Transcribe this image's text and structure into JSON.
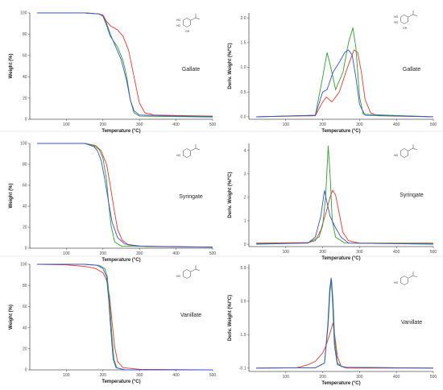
{
  "colors": {
    "red": "#e8382f",
    "green": "#2e9e2e",
    "blue": "#3b4fd6"
  },
  "panels": [
    {
      "compound": "Gallate",
      "mol_labels": [
        "HO",
        "HO",
        "OH"
      ],
      "xlabel": "Temperature (°C)",
      "ylabel": "Weight (%)",
      "xticks": [
        "100",
        "200",
        "300",
        "400",
        "500"
      ],
      "yticks": [
        "0",
        "20",
        "40",
        "60",
        "80",
        "100"
      ]
    },
    {
      "compound": "Gallate",
      "mol_labels": [
        "HO",
        "HO",
        "OH"
      ],
      "xlabel": "Temperature (°C)",
      "ylabel": "Deriv. Weight (%/°C)",
      "xticks": [
        "100",
        "200",
        "300",
        "400",
        "500"
      ],
      "yticks": [
        "0.0",
        "0.5",
        "1.0",
        "1.5",
        "2.0"
      ]
    },
    {
      "compound": "Syringate",
      "mol_labels": [
        "HO"
      ],
      "xlabel": "Temperature (°C)",
      "ylabel": "Weight (%)",
      "xticks": [
        "100",
        "200",
        "300",
        "400",
        "500"
      ],
      "yticks": [
        "0",
        "20",
        "40",
        "60",
        "80",
        "100"
      ]
    },
    {
      "compound": "Syringate",
      "mol_labels": [
        "HO"
      ],
      "xlabel": "Temperature (°C)",
      "ylabel": "Deriv. Weight (%/°C)",
      "xticks": [
        "100",
        "200",
        "300",
        "400",
        "500"
      ],
      "yticks": [
        "0",
        "1",
        "2",
        "3",
        "4"
      ]
    },
    {
      "compound": "Vanillate",
      "mol_labels": [
        "HO"
      ],
      "xlabel": "Temperature (°C)",
      "ylabel": "Weight (%)",
      "xticks": [
        "100",
        "200",
        "300",
        "400",
        "500"
      ],
      "yticks": [
        "0",
        "20",
        "40",
        "60",
        "80",
        "100"
      ]
    },
    {
      "compound": "Vanillate",
      "mol_labels": [
        "HO"
      ],
      "xlabel": "Temperature (°C)",
      "ylabel": "Deriv. Weight (%/°C)",
      "xticks": [
        "100",
        "200",
        "300",
        "400",
        "500"
      ],
      "yticks": [
        "-0.1",
        "1.9",
        "3.9",
        "5.9"
      ]
    }
  ],
  "chart_data": [
    {
      "type": "line",
      "xlim": [
        0,
        500
      ],
      "ylim": [
        0,
        100
      ],
      "series": [
        {
          "color": "red",
          "points": [
            [
              20,
              100
            ],
            [
              150,
              100
            ],
            [
              190,
              99
            ],
            [
              200,
              98
            ],
            [
              210,
              92
            ],
            [
              220,
              88
            ],
            [
              240,
              84
            ],
            [
              255,
              78
            ],
            [
              270,
              65
            ],
            [
              285,
              40
            ],
            [
              300,
              15
            ],
            [
              315,
              6
            ],
            [
              340,
              4
            ],
            [
              400,
              3.5
            ],
            [
              500,
              3
            ]
          ]
        },
        {
          "color": "green",
          "points": [
            [
              20,
              100
            ],
            [
              150,
              100
            ],
            [
              190,
              99
            ],
            [
              200,
              97
            ],
            [
              210,
              88
            ],
            [
              220,
              78
            ],
            [
              240,
              68
            ],
            [
              255,
              55
            ],
            [
              265,
              40
            ],
            [
              275,
              18
            ],
            [
              285,
              6
            ],
            [
              300,
              3
            ],
            [
              400,
              2.5
            ],
            [
              500,
              2
            ]
          ]
        },
        {
          "color": "blue",
          "points": [
            [
              20,
              100
            ],
            [
              150,
              100
            ],
            [
              190,
              99
            ],
            [
              200,
              97
            ],
            [
              210,
              90
            ],
            [
              220,
              80
            ],
            [
              235,
              68
            ],
            [
              250,
              56
            ],
            [
              265,
              36
            ],
            [
              275,
              18
            ],
            [
              285,
              8
            ],
            [
              300,
              4
            ],
            [
              400,
              3
            ],
            [
              500,
              2.5
            ]
          ]
        }
      ]
    },
    {
      "type": "line",
      "xlim": [
        0,
        500
      ],
      "ylim": [
        -0.05,
        2.1
      ],
      "series": [
        {
          "color": "red",
          "points": [
            [
              20,
              0
            ],
            [
              180,
              0.02
            ],
            [
              200,
              0.3
            ],
            [
              210,
              0.4
            ],
            [
              225,
              0.3
            ],
            [
              245,
              0.5
            ],
            [
              265,
              0.95
            ],
            [
              285,
              1.35
            ],
            [
              295,
              1.3
            ],
            [
              305,
              0.9
            ],
            [
              315,
              0.35
            ],
            [
              330,
              0.08
            ],
            [
              350,
              0.02
            ],
            [
              500,
              0
            ]
          ]
        },
        {
          "color": "green",
          "points": [
            [
              20,
              0
            ],
            [
              180,
              0.03
            ],
            [
              200,
              0.8
            ],
            [
              212,
              1.3
            ],
            [
              222,
              1.0
            ],
            [
              235,
              0.55
            ],
            [
              255,
              0.9
            ],
            [
              270,
              1.5
            ],
            [
              282,
              1.8
            ],
            [
              290,
              1.4
            ],
            [
              300,
              0.4
            ],
            [
              310,
              0.05
            ],
            [
              500,
              0
            ]
          ]
        },
        {
          "color": "blue",
          "points": [
            [
              20,
              0
            ],
            [
              180,
              0.03
            ],
            [
              200,
              0.5
            ],
            [
              212,
              0.55
            ],
            [
              228,
              0.9
            ],
            [
              245,
              1.1
            ],
            [
              260,
              1.3
            ],
            [
              270,
              1.35
            ],
            [
              280,
              1.25
            ],
            [
              290,
              0.8
            ],
            [
              300,
              0.25
            ],
            [
              315,
              0.03
            ],
            [
              500,
              0
            ]
          ]
        }
      ]
    },
    {
      "type": "line",
      "xlim": [
        0,
        500
      ],
      "ylim": [
        0,
        100
      ],
      "series": [
        {
          "color": "red",
          "points": [
            [
              20,
              100
            ],
            [
              150,
              100
            ],
            [
              180,
              98
            ],
            [
              195,
              93
            ],
            [
              210,
              80
            ],
            [
              220,
              60
            ],
            [
              230,
              38
            ],
            [
              240,
              18
            ],
            [
              252,
              8
            ],
            [
              270,
              3
            ],
            [
              320,
              1.5
            ],
            [
              500,
              1
            ]
          ]
        },
        {
          "color": "green",
          "points": [
            [
              20,
              100
            ],
            [
              150,
              100
            ],
            [
              175,
              98
            ],
            [
              190,
              94
            ],
            [
              200,
              86
            ],
            [
              210,
              65
            ],
            [
              215,
              45
            ],
            [
              222,
              22
            ],
            [
              232,
              6
            ],
            [
              250,
              2
            ],
            [
              500,
              1
            ]
          ]
        },
        {
          "color": "blue",
          "points": [
            [
              20,
              100
            ],
            [
              150,
              100
            ],
            [
              175,
              97
            ],
            [
              185,
              93
            ],
            [
              195,
              84
            ],
            [
              205,
              66
            ],
            [
              215,
              45
            ],
            [
              225,
              25
            ],
            [
              240,
              10
            ],
            [
              260,
              4
            ],
            [
              300,
              2
            ],
            [
              500,
              1
            ]
          ]
        }
      ]
    },
    {
      "type": "line",
      "xlim": [
        0,
        500
      ],
      "ylim": [
        -0.1,
        4.3
      ],
      "series": [
        {
          "color": "red",
          "points": [
            [
              20,
              0.05
            ],
            [
              160,
              0.07
            ],
            [
              180,
              0.15
            ],
            [
              195,
              0.6
            ],
            [
              210,
              1.4
            ],
            [
              220,
              2.0
            ],
            [
              227,
              2.3
            ],
            [
              235,
              2.1
            ],
            [
              245,
              1.3
            ],
            [
              255,
              0.5
            ],
            [
              270,
              0.15
            ],
            [
              300,
              0.05
            ],
            [
              500,
              0.05
            ]
          ]
        },
        {
          "color": "green",
          "points": [
            [
              20,
              0.02
            ],
            [
              160,
              0.05
            ],
            [
              190,
              0.3
            ],
            [
              200,
              0.8
            ],
            [
              208,
              2.0
            ],
            [
              215,
              4.2
            ],
            [
              220,
              3.0
            ],
            [
              226,
              1.0
            ],
            [
              235,
              0.3
            ],
            [
              260,
              0.05
            ],
            [
              500,
              0.03
            ]
          ]
        },
        {
          "color": "blue",
          "points": [
            [
              20,
              0
            ],
            [
              160,
              0.05
            ],
            [
              180,
              0.3
            ],
            [
              195,
              1.2
            ],
            [
              205,
              2.3
            ],
            [
              210,
              1.9
            ],
            [
              220,
              1.2
            ],
            [
              235,
              0.7
            ],
            [
              250,
              0.3
            ],
            [
              270,
              0.05
            ],
            [
              500,
              0
            ]
          ]
        }
      ]
    },
    {
      "type": "line",
      "xlim": [
        0,
        500
      ],
      "ylim": [
        0,
        100
      ],
      "series": [
        {
          "color": "red",
          "points": [
            [
              20,
              100
            ],
            [
              100,
              99.5
            ],
            [
              150,
              98
            ],
            [
              180,
              96
            ],
            [
              200,
              92
            ],
            [
              210,
              85
            ],
            [
              218,
              70
            ],
            [
              225,
              45
            ],
            [
              232,
              22
            ],
            [
              240,
              8
            ],
            [
              255,
              2
            ],
            [
              300,
              0.5
            ],
            [
              500,
              0
            ]
          ]
        },
        {
          "color": "green",
          "points": [
            [
              20,
              100
            ],
            [
              150,
              100
            ],
            [
              190,
              99
            ],
            [
              205,
              96
            ],
            [
              212,
              88
            ],
            [
              218,
              65
            ],
            [
              224,
              35
            ],
            [
              230,
              10
            ],
            [
              238,
              2
            ],
            [
              260,
              0
            ],
            [
              500,
              0
            ]
          ]
        },
        {
          "color": "blue",
          "points": [
            [
              20,
              100
            ],
            [
              150,
              100
            ],
            [
              185,
              99
            ],
            [
              200,
              96
            ],
            [
              210,
              88
            ],
            [
              216,
              65
            ],
            [
              222,
              35
            ],
            [
              228,
              10
            ],
            [
              236,
              2
            ],
            [
              260,
              0
            ],
            [
              500,
              0
            ]
          ]
        }
      ]
    },
    {
      "type": "line",
      "xlim": [
        0,
        500
      ],
      "ylim": [
        -0.3,
        6.1
      ],
      "series": [
        {
          "color": "red",
          "points": [
            [
              20,
              -0.1
            ],
            [
              130,
              -0.08
            ],
            [
              160,
              0.1
            ],
            [
              180,
              0.3
            ],
            [
              200,
              0.8
            ],
            [
              210,
              1.3
            ],
            [
              220,
              2.0
            ],
            [
              228,
              2.6
            ],
            [
              233,
              1.8
            ],
            [
              240,
              0.6
            ],
            [
              250,
              0
            ],
            [
              265,
              -0.1
            ],
            [
              500,
              -0.1
            ]
          ]
        },
        {
          "color": "green",
          "points": [
            [
              20,
              -0.1
            ],
            [
              180,
              -0.08
            ],
            [
              205,
              0.2
            ],
            [
              215,
              2.5
            ],
            [
              220,
              4.5
            ],
            [
              224,
              5.2
            ],
            [
              228,
              4.0
            ],
            [
              233,
              1.5
            ],
            [
              240,
              0.2
            ],
            [
              252,
              0
            ],
            [
              265,
              -0.05
            ],
            [
              500,
              -0.1
            ]
          ]
        },
        {
          "color": "blue",
          "points": [
            [
              20,
              -0.1
            ],
            [
              180,
              -0.08
            ],
            [
              205,
              0.2
            ],
            [
              214,
              2.5
            ],
            [
              219,
              4.6
            ],
            [
              223,
              5.3
            ],
            [
              227,
              3.8
            ],
            [
              232,
              1.2
            ],
            [
              240,
              0.1
            ],
            [
              260,
              -0.05
            ],
            [
              500,
              -0.1
            ]
          ]
        }
      ]
    }
  ]
}
